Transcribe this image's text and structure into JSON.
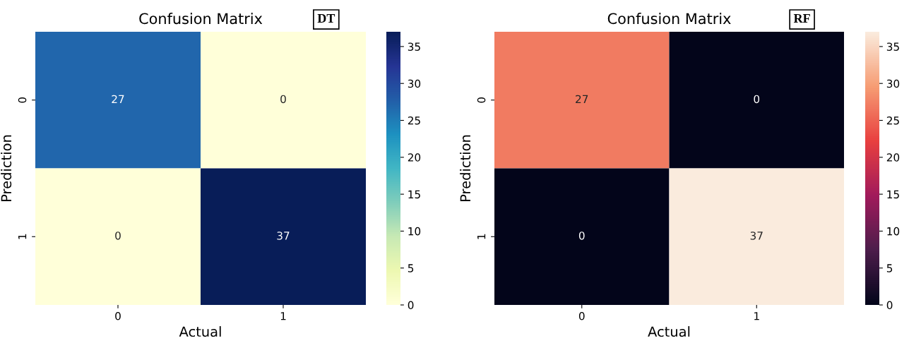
{
  "chart_data": [
    {
      "type": "heatmap",
      "title": "Confusion Matrix",
      "xlabel": "Actual",
      "ylabel": "Prediction",
      "annotations": [
        "DT"
      ],
      "categories": [
        "0",
        "1"
      ],
      "y_categories": [
        "0",
        "1"
      ],
      "cells": [
        [
          27,
          0
        ],
        [
          0,
          37
        ]
      ],
      "data_labels": true,
      "clim": [
        0,
        37
      ],
      "cticks": [
        0,
        5,
        10,
        15,
        20,
        25,
        30,
        35
      ],
      "colors": [
        "#ffffd9",
        "#edf8b1",
        "#c7e9b4",
        "#7fcdbb",
        "#41b6c4",
        "#1d91c0",
        "#225ea8",
        "#253494",
        "#081d58"
      ]
    },
    {
      "type": "heatmap",
      "title": "Confusion Matrix",
      "xlabel": "Actual",
      "ylabel": "Prediction",
      "annotations": [
        "RF"
      ],
      "categories": [
        "0",
        "1"
      ],
      "y_categories": [
        "0",
        "1"
      ],
      "cells": [
        [
          27,
          0
        ],
        [
          0,
          37
        ]
      ],
      "data_labels": true,
      "clim": [
        0,
        37
      ],
      "cticks": [
        0,
        5,
        10,
        15,
        20,
        25,
        30,
        35
      ],
      "colors": [
        "#03051a",
        "#4c1d4b",
        "#a11a5b",
        "#e83f3f",
        "#f69c73",
        "#faebdd"
      ]
    }
  ]
}
